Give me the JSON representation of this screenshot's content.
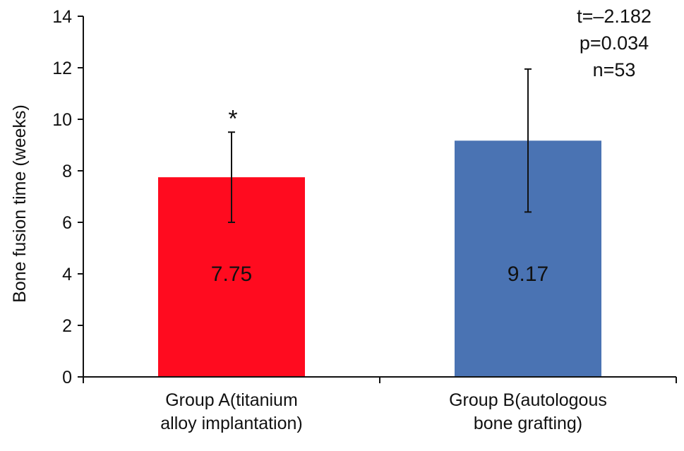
{
  "chart_data": {
    "type": "bar",
    "categories": [
      [
        "Group A(titanium",
        "alloy implantation)"
      ],
      [
        "Group B(autologous",
        "bone grafting)"
      ]
    ],
    "values": [
      7.75,
      9.17
    ],
    "value_labels": [
      "7.75",
      "9.17"
    ],
    "error": [
      {
        "low": 6.0,
        "high": 9.5
      },
      {
        "low": 6.4,
        "high": 11.95
      }
    ],
    "colors": [
      "#ff0b1f",
      "#4a73b3"
    ],
    "significance": [
      {
        "bar": 0,
        "mark": "*"
      }
    ],
    "ylabel": "Bone fusion time (weeks)",
    "ylim": [
      0,
      14
    ],
    "yticks": [
      0,
      2,
      4,
      6,
      8,
      10,
      12,
      14
    ],
    "ytick_labels": [
      "0",
      "2",
      "4",
      "6",
      "8",
      "10",
      "12",
      "14"
    ],
    "annotations": [
      "t=–2.182",
      "p=0.034",
      "n=53"
    ],
    "grid": false
  }
}
